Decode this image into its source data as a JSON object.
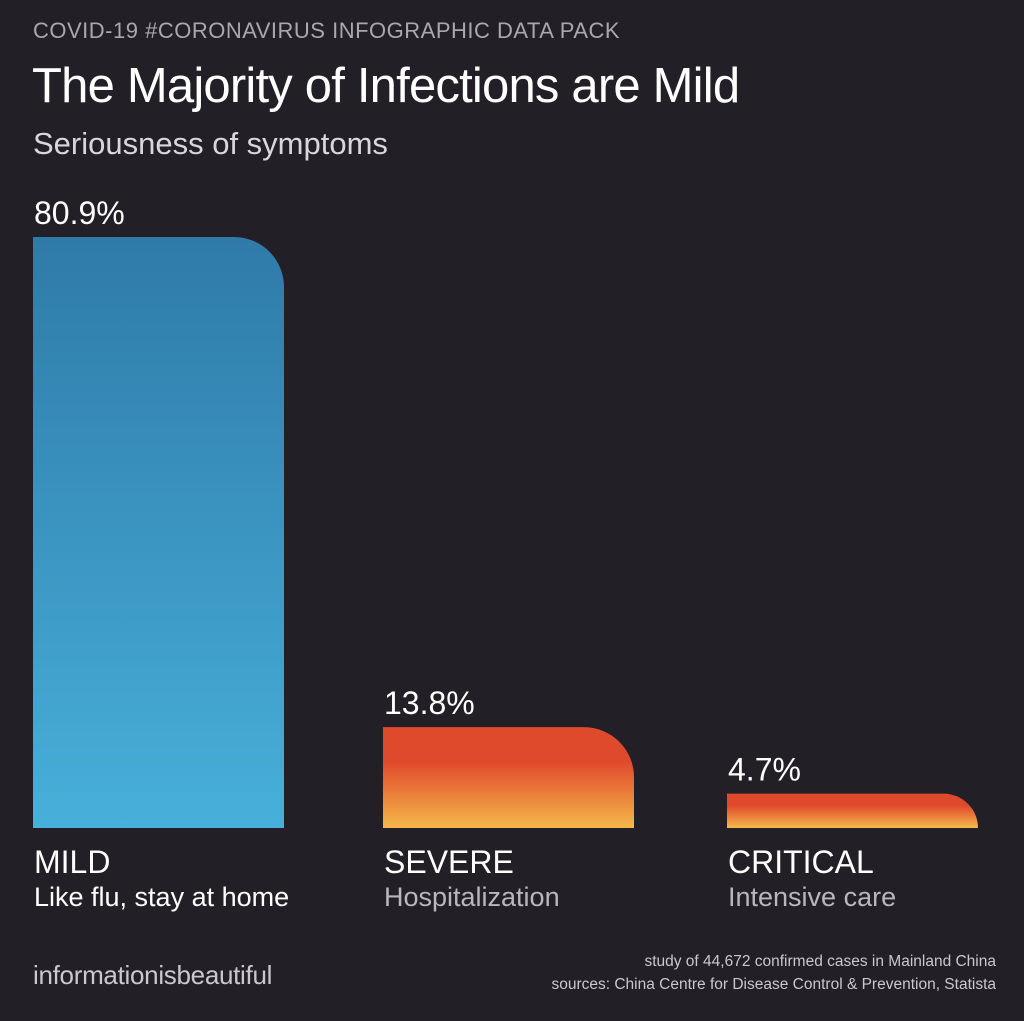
{
  "header": {
    "kicker": "COVID-19 #CORONAVIRUS INFOGRAPHIC DATA PACK",
    "title": "The Majority of Infections are Mild",
    "subtitle": "Seriousness of symptoms"
  },
  "chart_data": {
    "type": "bar",
    "title": "The Majority of Infections are Mild",
    "subtitle": "Seriousness of symptoms",
    "categories": [
      "MILD",
      "SEVERE",
      "CRITICAL"
    ],
    "descriptions": [
      "Like flu, stay at home",
      "Hospitalization",
      "Intensive care"
    ],
    "values": [
      80.9,
      13.8,
      4.7
    ],
    "value_labels": [
      "80.9%",
      "13.8%",
      "4.7%"
    ],
    "unit": "%",
    "ylim": [
      0,
      80.9
    ],
    "grid": false,
    "legend": "none",
    "bar_colors": [
      {
        "top": "#2f7aa8",
        "bottom": "#47b0da"
      },
      {
        "top": "#e04a2c",
        "bottom": "#f5b84a"
      },
      {
        "top": "#e04a2c",
        "bottom": "#f5b84a"
      }
    ],
    "description_colors": [
      "#ffffff",
      "#b8b7bd",
      "#b8b7bd"
    ]
  },
  "footer": {
    "brand": "informationisbeautiful",
    "note_line1": "study of 44,672 confirmed cases in Mainland China",
    "note_line2": "sources: China Centre for Disease Control & Prevention, Statista"
  },
  "colors": {
    "background": "#222026",
    "text": "#ffffff",
    "muted": "#a9a8ae"
  }
}
